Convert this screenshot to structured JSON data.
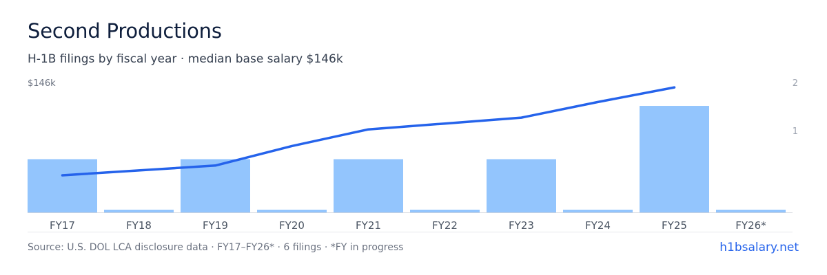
{
  "header": {
    "title": "Second Productions",
    "subtitle": "H-1B filings by fiscal year · median base salary $146k"
  },
  "footer": {
    "source": "Source: U.S. DOL LCA disclosure data · FY17–FY26* · 6 filings · *FY in progress",
    "link": "h1bsalary.net"
  },
  "colors": {
    "bar": "#93c5fd",
    "line": "#2563eb",
    "axis_text": "#9ca3af",
    "category_text": "#4b5563",
    "baseline": "#d1d5db"
  },
  "chart_data": {
    "type": "bar",
    "categories": [
      "FY17",
      "FY18",
      "FY19",
      "FY20",
      "FY21",
      "FY22",
      "FY23",
      "FY24",
      "FY25",
      "FY26*"
    ],
    "series": [
      {
        "type": "bar",
        "axis": "right",
        "values": [
          1,
          0,
          1,
          0,
          1,
          0,
          1,
          0,
          2,
          0
        ]
      },
      {
        "type": "line",
        "axis": "left",
        "values": [
          0.38,
          0.43,
          0.48,
          0.68,
          0.85,
          0.91,
          0.97,
          1.13,
          1.28,
          null
        ]
      }
    ],
    "y_left_label": "$146k",
    "y_right_ticks": [
      "2",
      "1"
    ],
    "y_right_range": [
      0,
      2
    ],
    "grid": false,
    "legend": "none"
  }
}
